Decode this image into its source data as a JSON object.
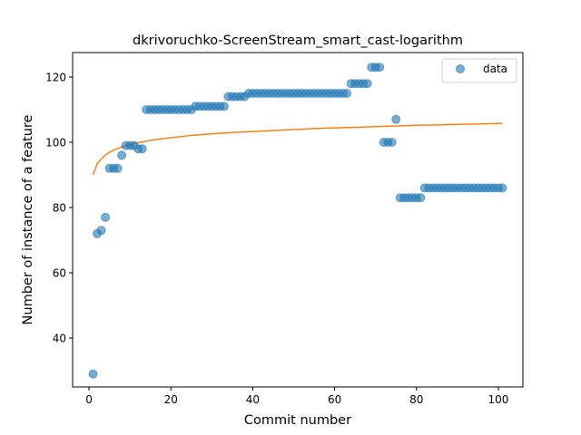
{
  "chart_data": {
    "type": "scatter",
    "title": "dkrivoruchko-ScreenStream_smart_cast-logarithm",
    "xlabel": "Commit number",
    "ylabel": "Number of instance of a feature",
    "xlim": [
      -4,
      106
    ],
    "ylim": [
      25,
      127.5
    ],
    "xticks": [
      0,
      20,
      40,
      60,
      80,
      100
    ],
    "yticks": [
      40,
      60,
      80,
      100,
      120
    ],
    "grid": false,
    "legend_position": "top-right",
    "series": [
      {
        "name": "data",
        "kind": "scatter",
        "color": "#1f77b4",
        "x": [
          1,
          2,
          3,
          4,
          5,
          6,
          7,
          8,
          9,
          10,
          11,
          12,
          13,
          14,
          15,
          16,
          17,
          18,
          19,
          20,
          21,
          22,
          23,
          24,
          25,
          26,
          27,
          28,
          29,
          30,
          31,
          32,
          33,
          34,
          35,
          36,
          37,
          38,
          39,
          40,
          41,
          42,
          43,
          44,
          45,
          46,
          47,
          48,
          49,
          50,
          51,
          52,
          53,
          54,
          55,
          56,
          57,
          58,
          59,
          60,
          61,
          62,
          63,
          64,
          65,
          66,
          67,
          68,
          69,
          70,
          71,
          72,
          73,
          74,
          75,
          76,
          77,
          78,
          79,
          80,
          81,
          82,
          83,
          84,
          85,
          86,
          87,
          88,
          89,
          90,
          91,
          92,
          93,
          94,
          95,
          96,
          97,
          98,
          99,
          100,
          101
        ],
        "y": [
          29,
          72,
          73,
          77,
          92,
          92,
          92,
          96,
          99,
          99,
          99,
          98,
          98,
          110,
          110,
          110,
          110,
          110,
          110,
          110,
          110,
          110,
          110,
          110,
          110,
          111,
          111,
          111,
          111,
          111,
          111,
          111,
          111,
          114,
          114,
          114,
          114,
          114,
          115,
          115,
          115,
          115,
          115,
          115,
          115,
          115,
          115,
          115,
          115,
          115,
          115,
          115,
          115,
          115,
          115,
          115,
          115,
          115,
          115,
          115,
          115,
          115,
          115,
          118,
          118,
          118,
          118,
          118,
          123,
          123,
          123,
          100,
          100,
          100,
          107,
          83,
          83,
          83,
          83,
          83,
          83,
          86,
          86,
          86,
          86,
          86,
          86,
          86,
          86,
          86,
          86,
          86,
          86,
          86,
          86,
          86,
          86,
          86,
          86,
          86,
          86
        ]
      },
      {
        "kind": "line",
        "color": "#ff7f0e",
        "x": [
          1,
          2,
          3,
          4,
          5,
          6,
          8,
          10,
          13,
          16,
          20,
          25,
          30,
          35,
          40,
          45,
          50,
          55,
          60,
          65,
          70,
          75,
          80,
          85,
          90,
          95,
          101
        ],
        "y": [
          90.0,
          93.4,
          94.9,
          96.1,
          96.9,
          97.6,
          98.6,
          99.3,
          100.1,
          100.8,
          101.4,
          102.1,
          102.6,
          103.0,
          103.3,
          103.6,
          103.9,
          104.2,
          104.4,
          104.6,
          104.8,
          105.0,
          105.2,
          105.3,
          105.5,
          105.6,
          105.8
        ]
      }
    ]
  }
}
